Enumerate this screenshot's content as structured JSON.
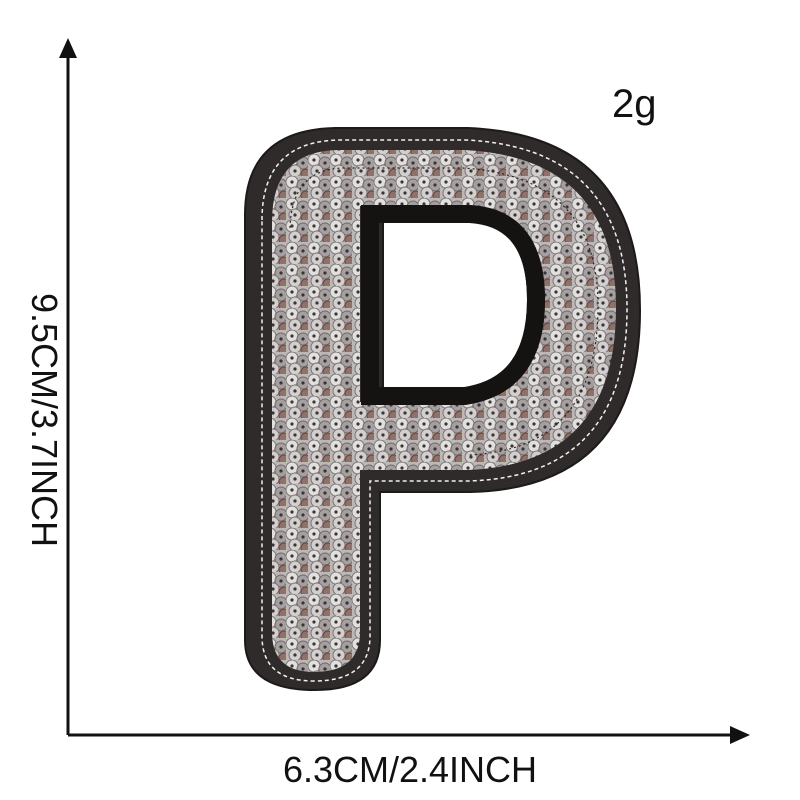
{
  "product": {
    "weight": "2g",
    "height_dimension": "9.5CM/3.7INCH",
    "width_dimension": "6.3CM/2.4INCH",
    "letter_shape": "P",
    "icons": [
      "vertical-arrow-icon",
      "horizontal-arrow-icon"
    ],
    "colors": {
      "felt_border": "#2f2b2b",
      "sequin_silver": "#c7c3c3",
      "sequin_rose": "#8c7068",
      "background": "#ffffff"
    }
  }
}
